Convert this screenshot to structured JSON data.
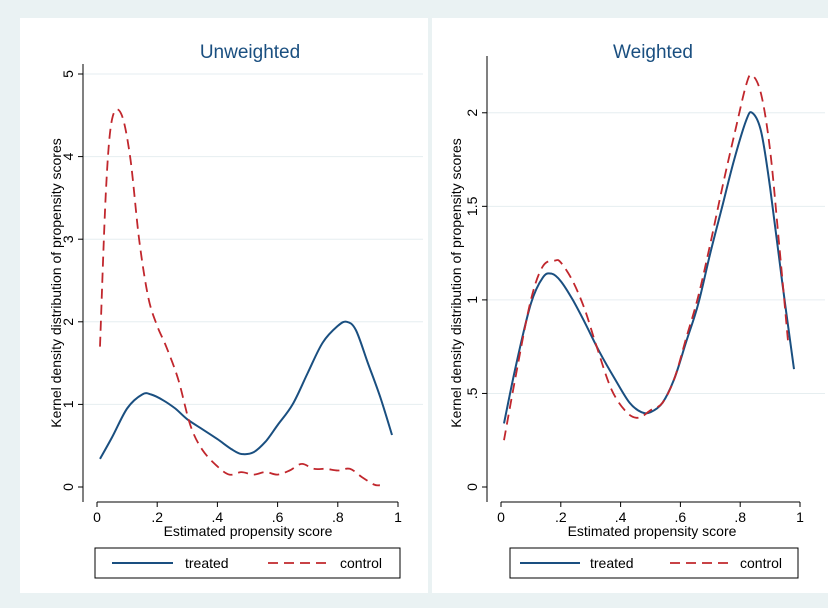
{
  "chart_data": [
    {
      "type": "line",
      "title": "Unweighted",
      "xlabel": "Estimated propensity score",
      "ylabel": "Kernel density distribution of propensity scores",
      "xlim": [
        0,
        1
      ],
      "ylim": [
        0,
        5
      ],
      "xticks": [
        "0",
        ".2",
        ".4",
        ".6",
        ".8",
        "1"
      ],
      "yticks": [
        "0",
        "1",
        "2",
        "3",
        "4",
        "5"
      ],
      "xtick_values": [
        0,
        0.2,
        0.4,
        0.6,
        0.8,
        1
      ],
      "ytick_values": [
        0,
        1,
        2,
        3,
        4,
        5
      ],
      "grid": true,
      "legend": "bottom",
      "series": [
        {
          "name": "treated",
          "color": "#1a4f80",
          "style": "solid",
          "x": [
            0.01,
            0.05,
            0.1,
            0.15,
            0.18,
            0.22,
            0.26,
            0.3,
            0.35,
            0.4,
            0.45,
            0.48,
            0.52,
            0.56,
            0.6,
            0.65,
            0.7,
            0.75,
            0.8,
            0.83,
            0.86,
            0.9,
            0.94,
            0.98
          ],
          "y": [
            0.34,
            0.6,
            0.95,
            1.12,
            1.12,
            1.05,
            0.95,
            0.82,
            0.7,
            0.58,
            0.45,
            0.4,
            0.42,
            0.55,
            0.75,
            1.0,
            1.38,
            1.75,
            1.95,
            2.0,
            1.9,
            1.5,
            1.1,
            0.63
          ]
        },
        {
          "name": "control",
          "color": "#c1272d",
          "style": "dashed",
          "x": [
            0.01,
            0.03,
            0.05,
            0.08,
            0.11,
            0.14,
            0.17,
            0.2,
            0.23,
            0.27,
            0.31,
            0.35,
            0.4,
            0.44,
            0.48,
            0.52,
            0.56,
            0.6,
            0.64,
            0.68,
            0.72,
            0.76,
            0.8,
            0.84,
            0.88,
            0.92,
            0.94
          ],
          "y": [
            1.7,
            3.6,
            4.45,
            4.52,
            4.0,
            3.0,
            2.3,
            1.95,
            1.7,
            1.3,
            0.75,
            0.45,
            0.25,
            0.15,
            0.18,
            0.15,
            0.18,
            0.15,
            0.2,
            0.28,
            0.22,
            0.22,
            0.2,
            0.22,
            0.12,
            0.03,
            0.02
          ]
        }
      ]
    },
    {
      "type": "line",
      "title": "Weighted",
      "xlabel": "Estimated propensity score",
      "ylabel": "Kernel density distribution of propensity scores",
      "xlim": [
        0,
        1
      ],
      "ylim": [
        0,
        2.25
      ],
      "xticks": [
        "0",
        ".2",
        ".4",
        ".6",
        ".8",
        "1"
      ],
      "yticks": [
        "0",
        ".5",
        "1",
        "1.5",
        "2"
      ],
      "xtick_values": [
        0,
        0.2,
        0.4,
        0.6,
        0.8,
        1
      ],
      "ytick_values": [
        0,
        0.5,
        1,
        1.5,
        2
      ],
      "grid": true,
      "legend": "bottom",
      "series": [
        {
          "name": "treated",
          "color": "#1a4f80",
          "style": "solid",
          "x": [
            0.01,
            0.05,
            0.1,
            0.14,
            0.17,
            0.2,
            0.24,
            0.28,
            0.33,
            0.38,
            0.43,
            0.47,
            0.5,
            0.54,
            0.58,
            0.62,
            0.66,
            0.7,
            0.74,
            0.78,
            0.82,
            0.84,
            0.87,
            0.9,
            0.94,
            0.98
          ],
          "y": [
            0.34,
            0.65,
            0.98,
            1.12,
            1.14,
            1.1,
            1.0,
            0.88,
            0.72,
            0.58,
            0.45,
            0.4,
            0.4,
            0.45,
            0.58,
            0.78,
            0.98,
            1.25,
            1.5,
            1.75,
            1.96,
            2.0,
            1.9,
            1.6,
            1.1,
            0.63
          ]
        },
        {
          "name": "control",
          "color": "#c1272d",
          "style": "dashed",
          "x": [
            0.01,
            0.05,
            0.1,
            0.14,
            0.18,
            0.2,
            0.24,
            0.28,
            0.32,
            0.37,
            0.42,
            0.46,
            0.5,
            0.54,
            0.58,
            0.62,
            0.66,
            0.7,
            0.74,
            0.78,
            0.82,
            0.84,
            0.87,
            0.9,
            0.93,
            0.96
          ],
          "y": [
            0.25,
            0.6,
            1.0,
            1.18,
            1.21,
            1.2,
            1.1,
            0.95,
            0.75,
            0.52,
            0.4,
            0.37,
            0.41,
            0.45,
            0.58,
            0.8,
            1.02,
            1.3,
            1.6,
            1.88,
            2.15,
            2.2,
            2.1,
            1.8,
            1.3,
            0.78
          ]
        }
      ]
    }
  ]
}
